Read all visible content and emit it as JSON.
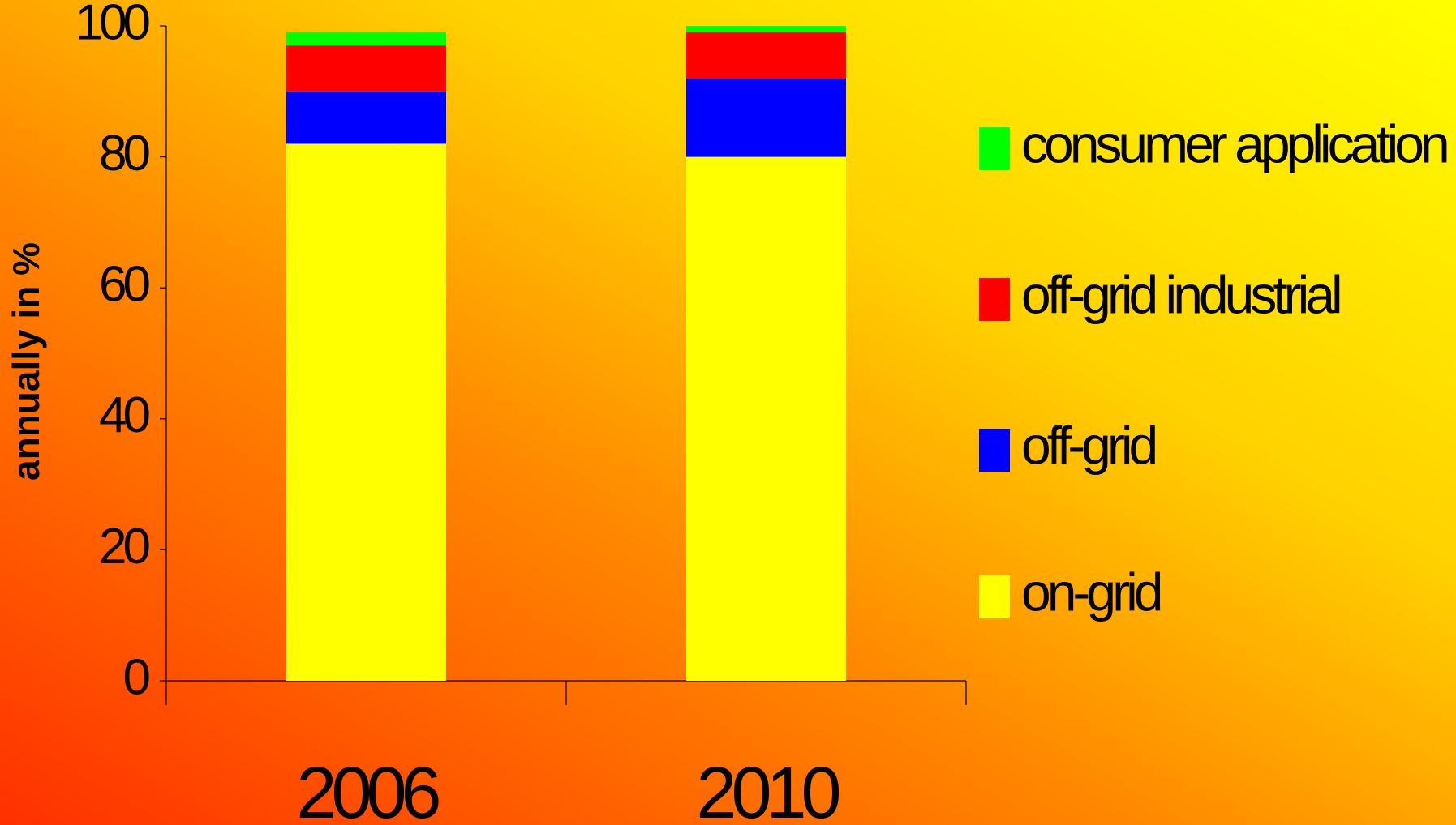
{
  "chart_data": {
    "type": "stacked_bar",
    "y_label": "annually in %",
    "categories": [
      "2006",
      "2010"
    ],
    "series": [
      {
        "name": "on-grid",
        "color": "#ffff00",
        "values": [
          82,
          80
        ]
      },
      {
        "name": "off-grid",
        "color": "#0000ff",
        "values": [
          8,
          12
        ]
      },
      {
        "name": "off-grid industrial",
        "color": "#ff0000",
        "values": [
          7,
          7
        ]
      },
      {
        "name": "consumer application",
        "color": "#00ff00",
        "values": [
          2,
          1
        ]
      }
    ],
    "ylim": [
      0,
      100
    ],
    "yticks": [
      0,
      20,
      40,
      60,
      80,
      100
    ],
    "grid": false,
    "legend": "right"
  }
}
